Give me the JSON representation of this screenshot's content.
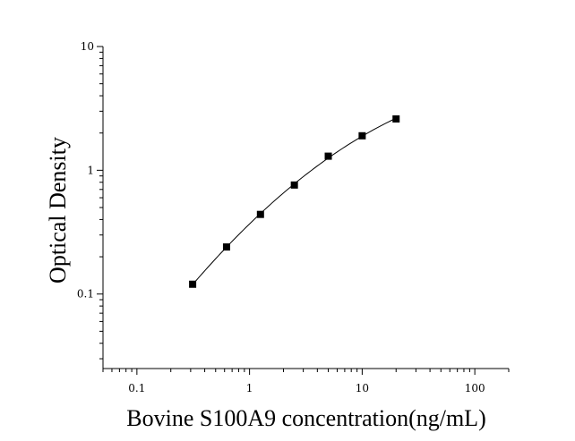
{
  "chart_data": {
    "type": "scatter",
    "title": "",
    "xlabel": "Bovine S100A9 concentration(ng/mL)",
    "ylabel": "Optical Density",
    "x_scale": "log",
    "y_scale": "log",
    "xlim": [
      0.05,
      200
    ],
    "ylim": [
      0.025,
      10
    ],
    "x_ticks": [
      0.1,
      1,
      10,
      100
    ],
    "x_tick_labels": [
      "0.1",
      "1",
      "10",
      "100"
    ],
    "y_ticks": [
      0.1,
      1,
      10
    ],
    "y_tick_labels": [
      "0.1",
      "1",
      "10"
    ],
    "grid": false,
    "legend": "none",
    "series": [
      {
        "x": [
          0.3125,
          0.625,
          1.25,
          2.5,
          5,
          10,
          20
        ],
        "y": [
          0.12,
          0.24,
          0.44,
          0.76,
          1.3,
          1.9,
          2.6
        ],
        "marker": "square",
        "fit_line": true
      }
    ],
    "colors": {
      "marker": "#000000",
      "line": "#000000",
      "axis": "#000000"
    }
  }
}
